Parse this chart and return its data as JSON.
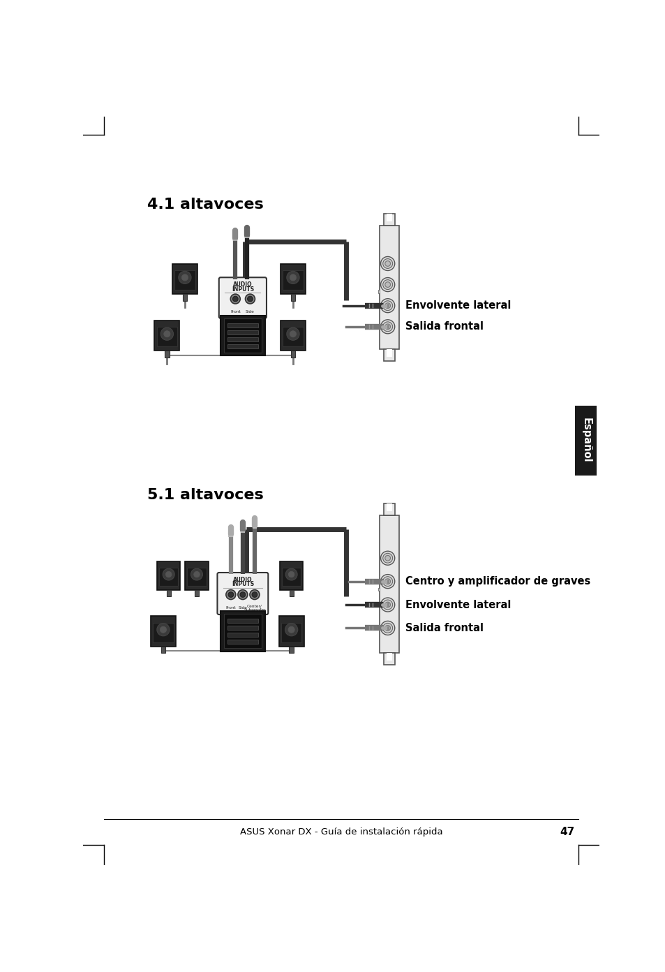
{
  "title1": "4.1 altavoces",
  "title2": "5.1 altavoces",
  "footer": "ASUS Xonar DX - Guía de instalación rápida",
  "page_number": "47",
  "label_frontal": "Salida frontal",
  "label_lateral": "Envolvente lateral",
  "label_centro": "Centro y amplificador de graves",
  "espanol_label": "Español",
  "bg_color": "#ffffff",
  "text_color": "#000000",
  "bracket_color": "#cccccc",
  "cable_dark": "#444444",
  "cable_gray": "#888888",
  "speaker_dark": "#222222",
  "speaker_body": "#555555",
  "subwoofer_dark": "#111111"
}
